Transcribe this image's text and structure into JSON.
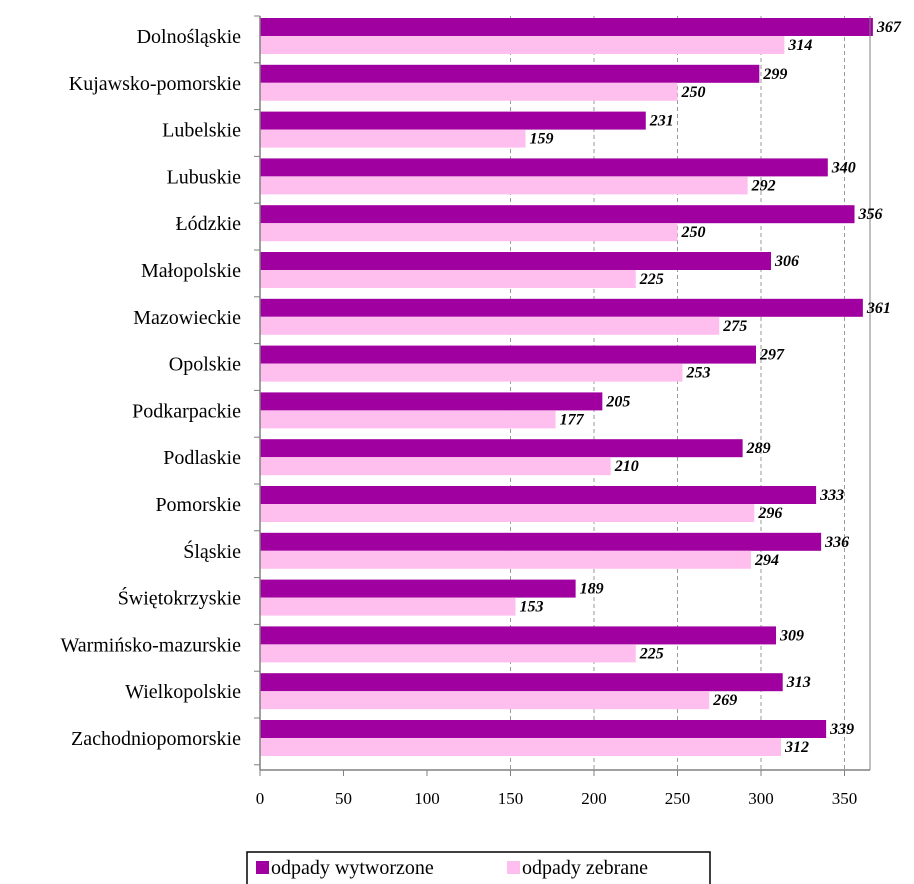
{
  "chart_data": {
    "type": "bar",
    "orientation": "horizontal",
    "categories": [
      "Dolnośląskie",
      "Kujawsko-pomorskie",
      "Lubelskie",
      "Lubuskie",
      "Łódzkie",
      "Małopolskie",
      "Mazowieckie",
      "Opolskie",
      "Podkarpackie",
      "Podlaskie",
      "Pomorskie",
      "Śląskie",
      "Świętokrzyskie",
      "Warmińsko-mazurskie",
      "Wielkopolskie",
      "Zachodniopomorskie"
    ],
    "series": [
      {
        "name": "odpady wytworzone",
        "color": "#a000a0",
        "values": [
          367,
          299,
          231,
          340,
          356,
          306,
          361,
          297,
          205,
          289,
          333,
          336,
          189,
          309,
          313,
          339
        ]
      },
      {
        "name": "odpady zebrane",
        "color": "#ffbfee",
        "values": [
          314,
          250,
          159,
          292,
          250,
          225,
          275,
          253,
          177,
          210,
          296,
          294,
          153,
          225,
          269,
          312
        ]
      }
    ],
    "xticks": [
      0,
      50,
      100,
      150,
      200,
      250,
      300,
      350
    ],
    "xlim": [
      0,
      370
    ],
    "grid": "vertical dashed at 150, 200, 250, 300, 350",
    "data_labels": true,
    "legend": "bottom",
    "title": "",
    "xlabel": "",
    "ylabel": ""
  }
}
